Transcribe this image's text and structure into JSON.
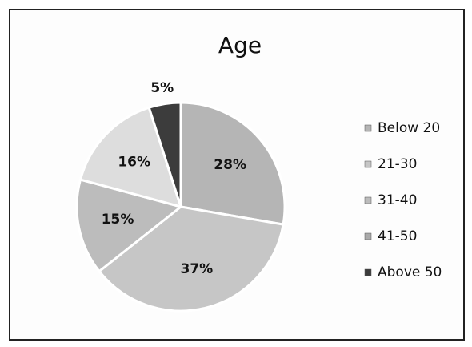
{
  "chart_data": {
    "type": "pie",
    "title": "Age",
    "categories": [
      "Below 20",
      "21-30",
      "31-40",
      "41-50",
      "Above 50"
    ],
    "values": [
      28,
      37,
      15,
      16,
      5
    ],
    "value_labels": [
      "28%",
      "37%",
      "15%",
      "16%",
      "5%"
    ],
    "colors": [
      "#b5b5b5",
      "#c6c6c6",
      "#bcbcbc",
      "#dddddd",
      "#3c3c3c"
    ],
    "legend": "right"
  }
}
